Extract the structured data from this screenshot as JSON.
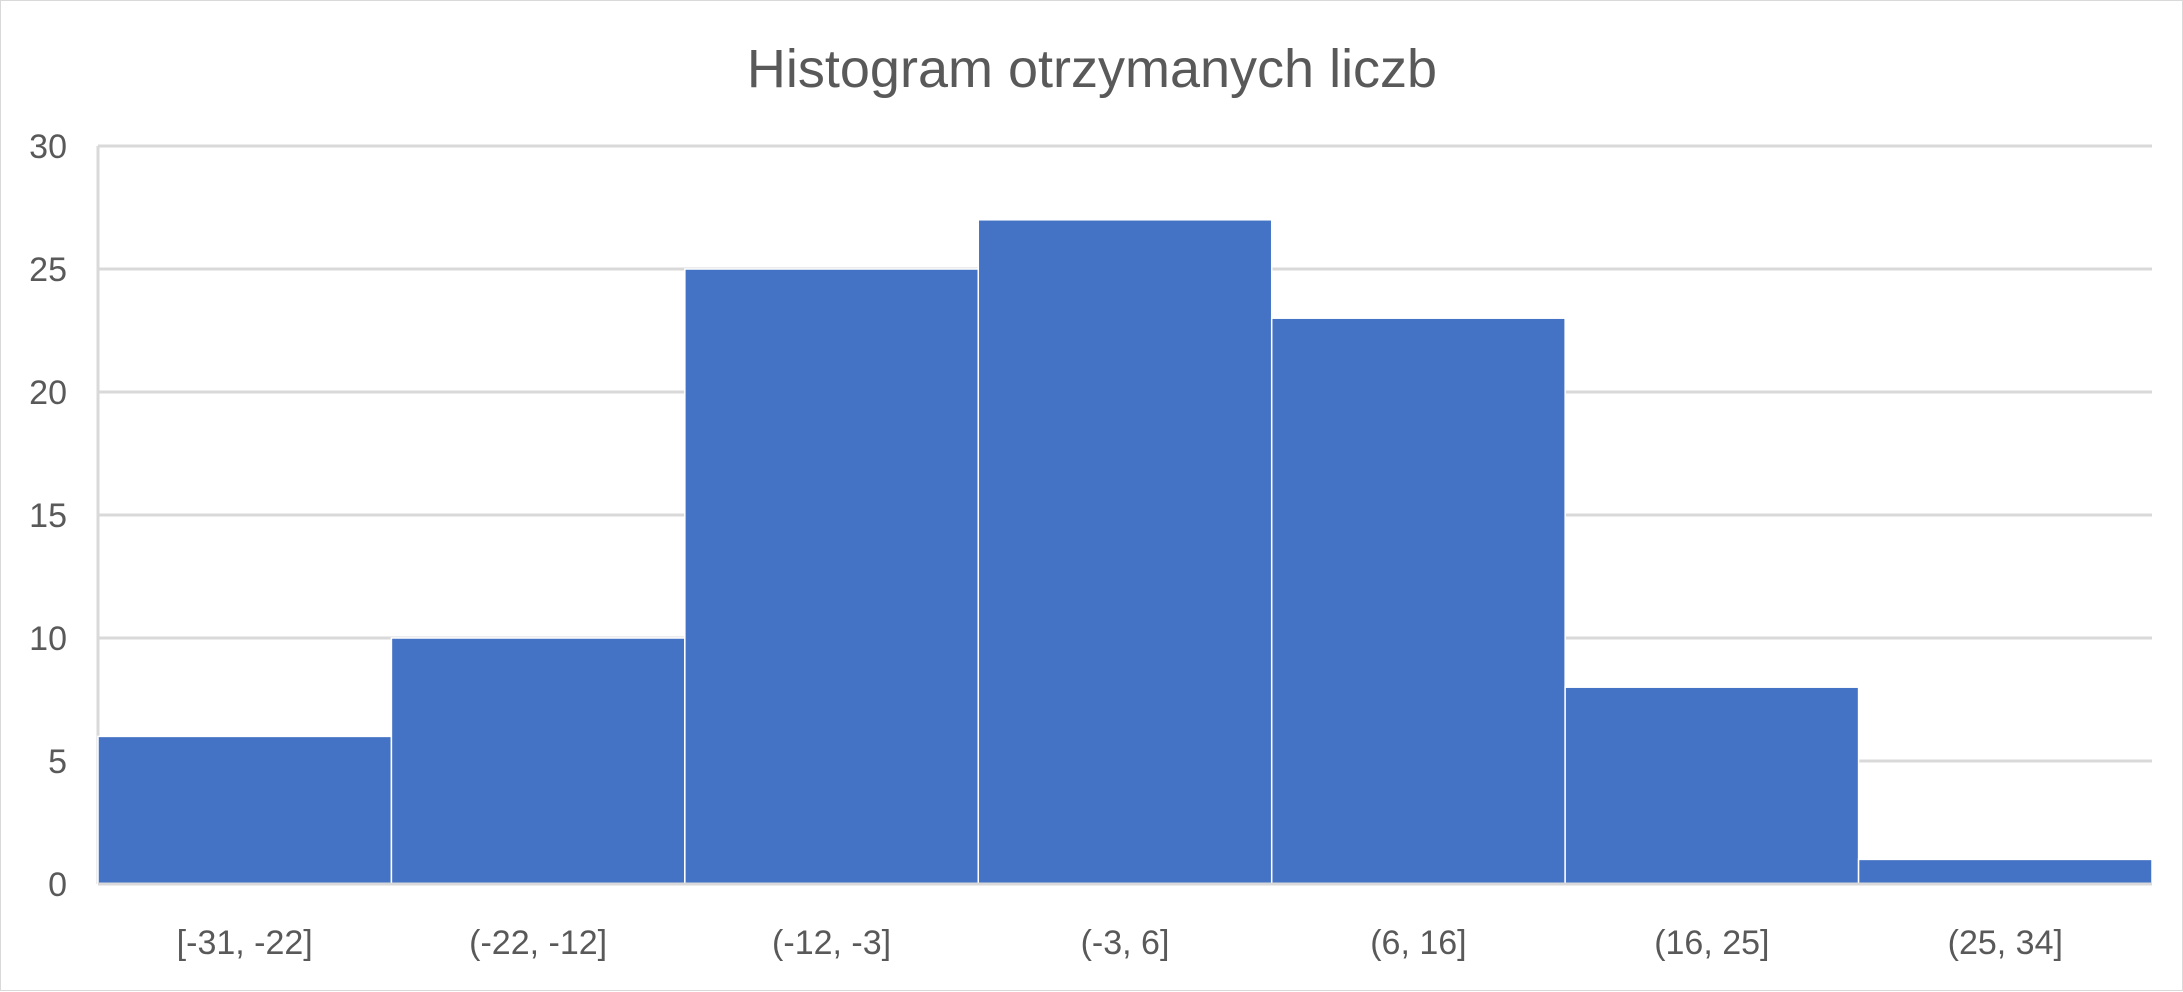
{
  "chart_data": {
    "type": "bar",
    "title": "Histogram otrzymanych liczb",
    "xlabel": "",
    "ylabel": "",
    "categories": [
      "[-31, -22]",
      "(-22, -12]",
      "(-12, -3]",
      "(-3, 6]",
      "(6, 16]",
      "(16, 25]",
      "(25, 34]"
    ],
    "values": [
      6,
      10,
      25,
      27,
      23,
      8,
      1
    ],
    "ylim": [
      0,
      30
    ],
    "yticks": [
      "0",
      "5",
      "10",
      "15",
      "20",
      "25",
      "30"
    ],
    "grid": true,
    "legend": "none",
    "bar_color": "#4472C4",
    "gridline_color": "#D9D9D9",
    "text_color": "#595959"
  }
}
